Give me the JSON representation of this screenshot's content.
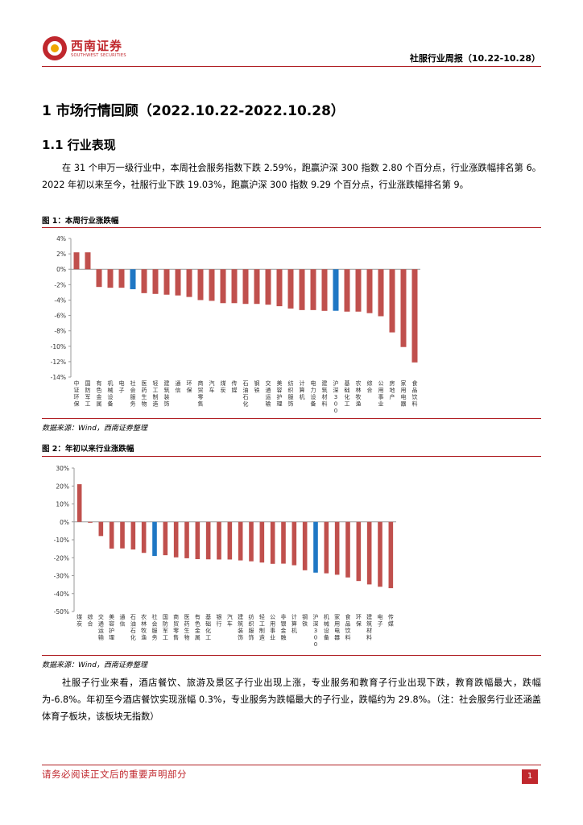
{
  "header": {
    "logo_cn": "西南证券",
    "logo_en": "SOUTHWEST SECURITIES",
    "report_title": "社服行业周报（10.22-10.28）"
  },
  "section": {
    "h1": "1 市场行情回顾（2022.10.22-2022.10.28）",
    "h2": "1.1 行业表现",
    "para1": "在 31 个申万一级行业中，本周社会服务指数下跌 2.59%，跑赢沪深 300 指数 2.80 个百分点，行业涨跌幅排名第 6。2022 年初以来至今，社服行业下跌 19.03%，跑赢沪深 300 指数 9.29 个百分点，行业涨跌幅排名第 9。",
    "para2": "社服子行业来看，酒店餐饮、旅游及景区子行业出现上涨，专业服务和教育子行业出现下跌，教育跌幅最大，跌幅为-6.8%。年初至今酒店餐饮实现涨幅 0.3%，专业服务为跌幅最大的子行业，跌幅约为 29.8%。（注：社会服务行业还涵盖体育子板块，该板块无指数）"
  },
  "figures": {
    "fig1_caption": "图 1：本周行业涨跌幅",
    "fig1_source": "数据来源：Wind，西南证券整理",
    "fig2_caption": "图 2：年初以来行业涨跌幅",
    "fig2_source": "数据来源：Wind，西南证券整理"
  },
  "chart_data": [
    {
      "type": "bar",
      "title": "本周行业涨跌幅",
      "unit": "%",
      "ylim": [
        -14,
        4
      ],
      "yticks": [
        4,
        2,
        0,
        -2,
        -4,
        -6,
        -8,
        -10,
        -12,
        -14
      ],
      "categories": [
        "中证环保",
        "国防军工",
        "有色金属",
        "机械设备",
        "电子",
        "社会服务",
        "医药生物",
        "轻工制造",
        "建筑装饰",
        "通信",
        "环保",
        "商贸零售",
        "汽车",
        "煤炭",
        "传媒",
        "石油石化",
        "钢铁",
        "交通运输",
        "美容护理",
        "纺织服饰",
        "计算机",
        "电力设备",
        "建筑材料",
        "沪深300",
        "基础化工",
        "农林牧渔",
        "综合",
        "公用事业",
        "房地产",
        "家用电器",
        "食品饮料"
      ],
      "values": [
        2.2,
        2.2,
        -2.3,
        -2.4,
        -2.4,
        -2.59,
        -3.1,
        -3.2,
        -3.3,
        -3.4,
        -3.6,
        -4.0,
        -4.1,
        -4.4,
        -4.4,
        -4.5,
        -4.5,
        -4.6,
        -4.8,
        -5.1,
        -5.3,
        -5.3,
        -5.4,
        -5.39,
        -5.5,
        -5.5,
        -5.7,
        -6.1,
        -8.2,
        -10.1,
        -12.1
      ],
      "highlight": [
        "社会服务",
        "沪深300"
      ],
      "colors": {
        "normal": "#c0504d",
        "highlight": "#1f77c4"
      }
    },
    {
      "type": "bar",
      "title": "年初以来行业涨跌幅",
      "unit": "%",
      "ylim": [
        -50,
        30
      ],
      "yticks": [
        30,
        20,
        10,
        0,
        -10,
        -20,
        -30,
        -40,
        -50
      ],
      "categories": [
        "煤炭",
        "综合",
        "交通运输",
        "美容护理",
        "通信",
        "石油石化",
        "农林牧渔",
        "社会服务",
        "国防军工",
        "商贸零售",
        "医药生物",
        "有色金属",
        "基础化工",
        "银行",
        "汽车",
        "建筑装饰",
        "纺织服饰",
        "轻工制造",
        "公用事业",
        "非银金融",
        "计算机",
        "钢铁",
        "沪深300",
        "机械设备",
        "家用电器",
        "食品饮料",
        "环保",
        "建筑材料",
        "电子",
        "传媒"
      ],
      "values": [
        21.0,
        -0.5,
        -7.9,
        -14.9,
        -14.8,
        -15.4,
        -17.3,
        -19.03,
        -18.6,
        -19.8,
        -20.3,
        -20.8,
        -20.9,
        -21.0,
        -21.0,
        -21.5,
        -22.0,
        -22.7,
        -23.4,
        -23.3,
        -24.2,
        -27.0,
        -28.32,
        -28.7,
        -29.5,
        -31.0,
        -33.0,
        -34.9,
        -36.2,
        -37.0
      ],
      "highlight": [
        "社会服务",
        "沪深300"
      ],
      "colors": {
        "normal": "#c0504d",
        "highlight": "#1f77c4"
      }
    }
  ],
  "footer": {
    "disclaimer": "请务必阅读正文后的重要声明部分",
    "page": "1"
  }
}
